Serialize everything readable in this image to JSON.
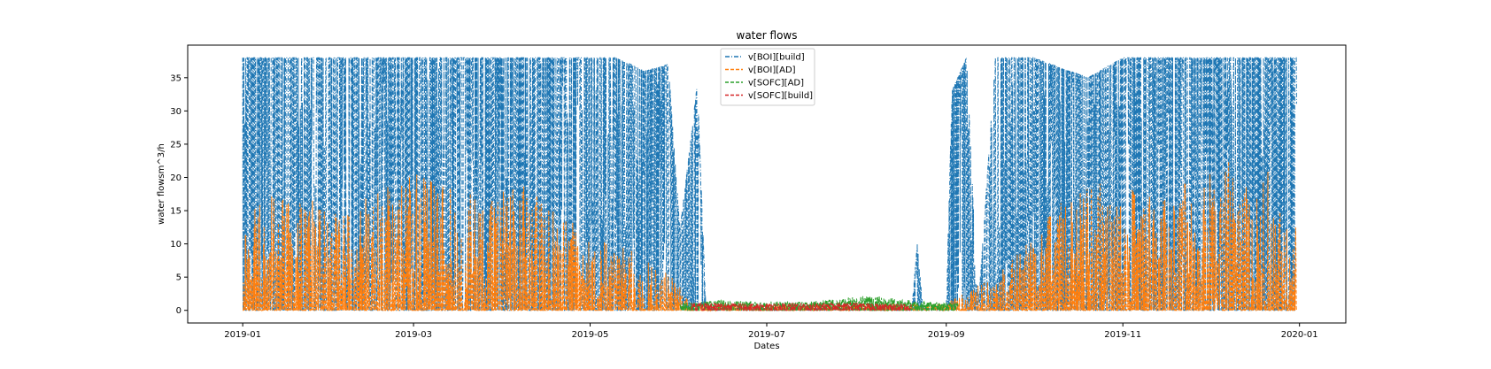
{
  "chart_data": {
    "type": "line",
    "title": "water flows",
    "xlabel": "Dates",
    "ylabel": "water flowsm^3/h",
    "xlim": [
      "2018-12-13",
      "2020-01-17"
    ],
    "ylim": [
      -1.9,
      39.9
    ],
    "x_ticks": [
      "2019-01",
      "2019-03",
      "2019-05",
      "2019-07",
      "2019-09",
      "2019-11",
      "2020-01"
    ],
    "y_ticks": [
      0,
      5,
      10,
      15,
      20,
      25,
      30,
      35
    ],
    "grid": false,
    "legend_position": "upper center",
    "series": [
      {
        "name": "v[BOI][build]",
        "color": "#1f77b4",
        "linestyle": "dashdot",
        "envelope": [
          {
            "date": "2019-01-01",
            "max": 38
          },
          {
            "date": "2019-01-20",
            "max": 38
          },
          {
            "date": "2019-02-10",
            "max": 38
          },
          {
            "date": "2019-03-01",
            "max": 38
          },
          {
            "date": "2019-03-20",
            "max": 38
          },
          {
            "date": "2019-04-10",
            "max": 38
          },
          {
            "date": "2019-04-30",
            "max": 38
          },
          {
            "date": "2019-05-10",
            "max": 38
          },
          {
            "date": "2019-05-20",
            "max": 36
          },
          {
            "date": "2019-05-28",
            "max": 37
          },
          {
            "date": "2019-06-01",
            "max": 12
          },
          {
            "date": "2019-06-07",
            "max": 34
          },
          {
            "date": "2019-06-10",
            "max": 0
          },
          {
            "date": "2019-08-20",
            "max": 0
          },
          {
            "date": "2019-08-22",
            "max": 10
          },
          {
            "date": "2019-08-24",
            "max": 0
          },
          {
            "date": "2019-09-01",
            "max": 0
          },
          {
            "date": "2019-09-03",
            "max": 33
          },
          {
            "date": "2019-09-08",
            "max": 38
          },
          {
            "date": "2019-09-12",
            "max": 0
          },
          {
            "date": "2019-09-18",
            "max": 38
          },
          {
            "date": "2019-10-01",
            "max": 38
          },
          {
            "date": "2019-10-20",
            "max": 35
          },
          {
            "date": "2019-11-01",
            "max": 38
          },
          {
            "date": "2019-12-01",
            "max": 38
          },
          {
            "date": "2019-12-31",
            "max": 38
          }
        ]
      },
      {
        "name": "v[BOI][AD]",
        "color": "#ff7f0e",
        "linestyle": "dashed",
        "envelope": [
          {
            "date": "2019-01-01",
            "max": 17
          },
          {
            "date": "2019-01-15",
            "max": 18
          },
          {
            "date": "2019-02-05",
            "max": 15
          },
          {
            "date": "2019-03-01",
            "max": 21
          },
          {
            "date": "2019-03-20",
            "max": 18
          },
          {
            "date": "2019-04-10",
            "max": 19
          },
          {
            "date": "2019-05-01",
            "max": 11
          },
          {
            "date": "2019-05-25",
            "max": 8
          },
          {
            "date": "2019-06-05",
            "max": 1
          },
          {
            "date": "2019-09-01",
            "max": 1
          },
          {
            "date": "2019-09-20",
            "max": 6
          },
          {
            "date": "2019-10-10",
            "max": 16
          },
          {
            "date": "2019-10-25",
            "max": 20
          },
          {
            "date": "2019-11-15",
            "max": 17
          },
          {
            "date": "2019-12-01",
            "max": 23
          },
          {
            "date": "2019-12-20",
            "max": 22
          },
          {
            "date": "2019-12-31",
            "max": 13
          }
        ]
      },
      {
        "name": "v[SOFC][AD]",
        "color": "#2ca02c",
        "linestyle": "dashed",
        "envelope": [
          {
            "date": "2019-06-01",
            "max": 1.2
          },
          {
            "date": "2019-06-15",
            "max": 1.5
          },
          {
            "date": "2019-07-15",
            "max": 1.3
          },
          {
            "date": "2019-08-05",
            "max": 2.3
          },
          {
            "date": "2019-08-25",
            "max": 1.3
          },
          {
            "date": "2019-09-05",
            "max": 1.2
          }
        ]
      },
      {
        "name": "v[SOFC][build]",
        "color": "#d62728",
        "linestyle": "dashed",
        "envelope": [
          {
            "date": "2019-06-05",
            "max": 1.2
          },
          {
            "date": "2019-07-01",
            "max": 1.0
          },
          {
            "date": "2019-08-01",
            "max": 1.2
          },
          {
            "date": "2019-08-20",
            "max": 0.9
          }
        ]
      }
    ]
  }
}
